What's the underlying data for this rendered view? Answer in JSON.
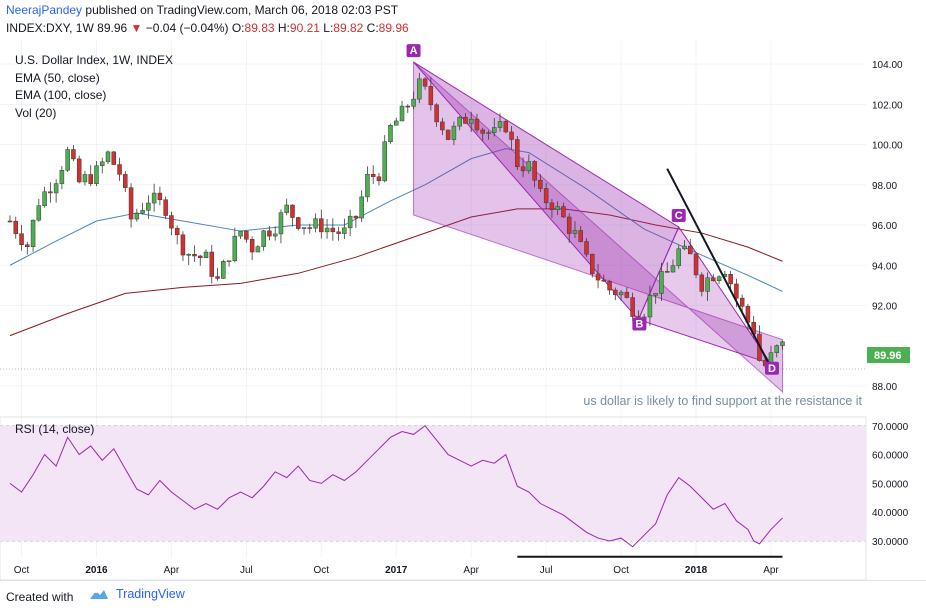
{
  "header": {
    "author": "NeerajPandey",
    "published": "published on TradingView.com, March 06, 2018 02:03 PST",
    "symbol": "INDEX:DXY, 1W",
    "price": "89.96",
    "change": "−0.04 (−0.04%)",
    "o_label": "O:",
    "o_value": "89.83",
    "h_label": "H:",
    "h_value": "90.21",
    "l_label": "L:",
    "l_value": "89.82",
    "c_label": "C:",
    "c_value": "89.96"
  },
  "legend": [
    "U.S. Dollar Index, 1W, INDEX",
    "EMA (50, close)",
    "EMA (100, close)",
    "Vol (20)"
  ],
  "rsi_label": "RSI (14, close)",
  "annotation": "us dollar is likely to find support at the resistance it",
  "last_price_tag": "89.96",
  "footer": {
    "created": "Created with",
    "brand": "TradingView"
  },
  "colors": {
    "up": "#4caf50",
    "down": "#d32f2f",
    "ema50": "#4a87b9",
    "ema100": "#8b1a1a",
    "pattern": "#9c27b0",
    "rsi": "#9c27b0",
    "rsi_band": "#f3e5f5"
  },
  "chart_data": [
    {
      "type": "candlestick",
      "title": "U.S. Dollar Index, 1W, INDEX",
      "y_ticks": [
        "104.00",
        "102.00",
        "100.00",
        "98.00",
        "96.00",
        "94.00",
        "92.00",
        "88.00"
      ],
      "x_ticks": [
        "Oct",
        "2016",
        "Apr",
        "Jul",
        "Oct",
        "2017",
        "Apr",
        "Jul",
        "Oct",
        "2018",
        "Apr"
      ],
      "ylim": [
        87.4,
        105.0
      ],
      "close_path": [
        [
          0,
          96.2
        ],
        [
          3,
          95.0
        ],
        [
          5,
          97.2
        ],
        [
          8,
          98.4
        ],
        [
          10,
          99.6
        ],
        [
          12,
          98.1
        ],
        [
          15,
          98.6
        ],
        [
          17,
          99.5
        ],
        [
          19,
          98.6
        ],
        [
          21,
          96.3
        ],
        [
          24,
          97.3
        ],
        [
          27,
          96.9
        ],
        [
          29,
          95.3
        ],
        [
          31,
          94.6
        ],
        [
          34,
          94.3
        ],
        [
          36,
          93.2
        ],
        [
          38,
          94.6
        ],
        [
          40,
          95.7
        ],
        [
          42,
          94.9
        ],
        [
          44,
          95.6
        ],
        [
          46,
          96.0
        ],
        [
          48,
          96.8
        ],
        [
          50,
          96.2
        ],
        [
          52,
          95.9
        ],
        [
          54,
          96.0
        ],
        [
          56,
          95.7
        ],
        [
          58,
          95.6
        ],
        [
          60,
          96.4
        ],
        [
          62,
          98.3
        ],
        [
          64,
          98.6
        ],
        [
          66,
          100.8
        ],
        [
          68,
          101.5
        ],
        [
          70,
          102.5
        ],
        [
          71,
          102.9
        ],
        [
          72,
          102.6
        ],
        [
          74,
          101.5
        ],
        [
          76,
          100.4
        ],
        [
          78,
          101.0
        ],
        [
          80,
          101.6
        ],
        [
          82,
          100.7
        ],
        [
          84,
          100.5
        ],
        [
          86,
          101.0
        ],
        [
          88,
          99.1
        ],
        [
          90,
          98.9
        ],
        [
          92,
          97.4
        ],
        [
          94,
          97.1
        ],
        [
          96,
          96.3
        ],
        [
          98,
          95.5
        ],
        [
          100,
          94.2
        ],
        [
          102,
          93.4
        ],
        [
          104,
          92.8
        ],
        [
          106,
          92.6
        ],
        [
          108,
          91.9
        ],
        [
          109,
          91.5
        ],
        [
          110,
          91.8
        ],
        [
          112,
          92.9
        ],
        [
          114,
          93.6
        ],
        [
          116,
          94.7
        ],
        [
          118,
          94.4
        ],
        [
          120,
          93.1
        ],
        [
          122,
          93.6
        ],
        [
          124,
          93.9
        ],
        [
          126,
          92.4
        ],
        [
          128,
          91.2
        ],
        [
          129,
          90.8
        ],
        [
          130,
          89.3
        ],
        [
          131,
          89.0
        ],
        [
          133,
          89.8
        ],
        [
          134,
          89.96
        ]
      ],
      "ema50": [
        [
          0,
          94.0
        ],
        [
          8,
          95.2
        ],
        [
          15,
          96.2
        ],
        [
          22,
          96.6
        ],
        [
          30,
          96.2
        ],
        [
          40,
          95.7
        ],
        [
          50,
          96.0
        ],
        [
          58,
          96.0
        ],
        [
          66,
          97.2
        ],
        [
          72,
          98.0
        ],
        [
          80,
          99.3
        ],
        [
          86,
          99.8
        ],
        [
          90,
          99.6
        ],
        [
          100,
          97.8
        ],
        [
          110,
          95.8
        ],
        [
          120,
          94.5
        ],
        [
          128,
          93.5
        ],
        [
          134,
          92.7
        ]
      ],
      "ema100": [
        [
          0,
          90.5
        ],
        [
          10,
          91.6
        ],
        [
          20,
          92.6
        ],
        [
          30,
          92.9
        ],
        [
          40,
          93.1
        ],
        [
          50,
          93.6
        ],
        [
          60,
          94.4
        ],
        [
          70,
          95.4
        ],
        [
          80,
          96.4
        ],
        [
          88,
          96.8
        ],
        [
          96,
          96.8
        ],
        [
          104,
          96.5
        ],
        [
          112,
          96.0
        ],
        [
          120,
          95.6
        ],
        [
          128,
          94.9
        ],
        [
          134,
          94.2
        ]
      ],
      "pattern": {
        "upper": [
          [
            70,
            104.1
          ],
          [
            134,
            87.7
          ]
        ],
        "lower": [
          [
            70,
            96.5
          ],
          [
            134,
            90.3
          ]
        ],
        "swing": [
          [
            70,
            104.1
          ],
          [
            109,
            91.3
          ],
          [
            116,
            95.9
          ],
          [
            132,
            89.1
          ]
        ],
        "points": [
          "A",
          "B",
          "C",
          "D"
        ]
      },
      "trendline": [
        [
          114,
          98.8
        ],
        [
          132,
          88.9
        ]
      ]
    },
    {
      "type": "line",
      "title": "RSI (14, close)",
      "y_ticks": [
        "70.0000",
        "60.0000",
        "50.0000",
        "40.0000",
        "30.0000"
      ],
      "ylim": [
        22,
        72
      ],
      "band": [
        30,
        70
      ],
      "values": [
        [
          0,
          50
        ],
        [
          2,
          47
        ],
        [
          4,
          53
        ],
        [
          6,
          60
        ],
        [
          8,
          56
        ],
        [
          10,
          66
        ],
        [
          12,
          60
        ],
        [
          14,
          63
        ],
        [
          16,
          58
        ],
        [
          18,
          62
        ],
        [
          20,
          55
        ],
        [
          22,
          48
        ],
        [
          24,
          46
        ],
        [
          26,
          51
        ],
        [
          28,
          47
        ],
        [
          30,
          44
        ],
        [
          32,
          41
        ],
        [
          34,
          43
        ],
        [
          36,
          41
        ],
        [
          38,
          45
        ],
        [
          40,
          47
        ],
        [
          42,
          45
        ],
        [
          44,
          49
        ],
        [
          46,
          54
        ],
        [
          48,
          52
        ],
        [
          50,
          56
        ],
        [
          52,
          51
        ],
        [
          54,
          50
        ],
        [
          56,
          53
        ],
        [
          58,
          51
        ],
        [
          60,
          54
        ],
        [
          62,
          58
        ],
        [
          64,
          62
        ],
        [
          66,
          66
        ],
        [
          68,
          68
        ],
        [
          70,
          67
        ],
        [
          72,
          70
        ],
        [
          74,
          65
        ],
        [
          76,
          60
        ],
        [
          78,
          58
        ],
        [
          80,
          56
        ],
        [
          82,
          58
        ],
        [
          84,
          57
        ],
        [
          86,
          60
        ],
        [
          88,
          49
        ],
        [
          90,
          47
        ],
        [
          92,
          43
        ],
        [
          94,
          41
        ],
        [
          96,
          39
        ],
        [
          98,
          36
        ],
        [
          100,
          33
        ],
        [
          102,
          31
        ],
        [
          104,
          30
        ],
        [
          106,
          31
        ],
        [
          108,
          28
        ],
        [
          110,
          32
        ],
        [
          112,
          36
        ],
        [
          114,
          46
        ],
        [
          116,
          52
        ],
        [
          118,
          49
        ],
        [
          120,
          45
        ],
        [
          122,
          41
        ],
        [
          124,
          43
        ],
        [
          126,
          37
        ],
        [
          128,
          34
        ],
        [
          129,
          30
        ],
        [
          130,
          29
        ],
        [
          132,
          34
        ],
        [
          134,
          38
        ]
      ],
      "support_line": [
        [
          88,
          24.5
        ],
        [
          134,
          24.5
        ]
      ]
    }
  ]
}
